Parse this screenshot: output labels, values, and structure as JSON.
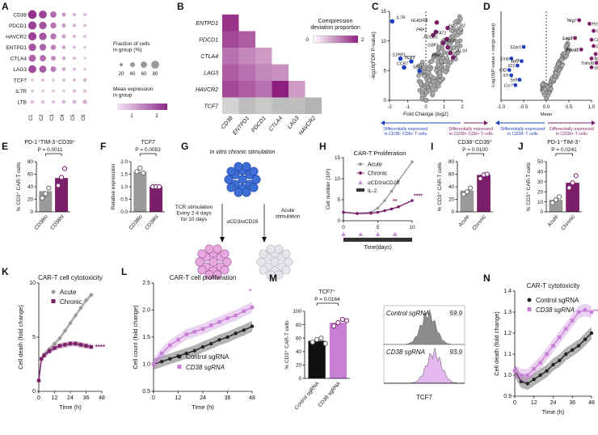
{
  "panels": {
    "A": "A",
    "B": "B",
    "C": "C",
    "D": "D",
    "E": "E",
    "F": "F",
    "G": "G",
    "H": "H",
    "I": "I",
    "J": "J",
    "K": "K",
    "L": "L",
    "M": "M",
    "N": "N"
  },
  "colors": {
    "purple": "#7b1f6a",
    "grey": "#9a9a9a",
    "light_purple": "#c77fd6",
    "blue": "#1f3fbf",
    "black": "#111111"
  },
  "panelA": {
    "genes": [
      "CD38",
      "PDCD1",
      "HAVCR2",
      "ENTPD1",
      "CTLA4",
      "LAG3",
      "TCF7",
      "IL7R",
      "LTB"
    ],
    "clusters": [
      "C1",
      "C2",
      "C3",
      "C4",
      "C5",
      "C6"
    ],
    "fraction": [
      [
        90,
        80,
        60,
        30,
        20,
        15
      ],
      [
        85,
        75,
        55,
        30,
        20,
        15
      ],
      [
        85,
        75,
        55,
        30,
        20,
        15
      ],
      [
        75,
        65,
        45,
        25,
        15,
        10
      ],
      [
        70,
        60,
        40,
        25,
        15,
        10
      ],
      [
        80,
        70,
        50,
        25,
        15,
        10
      ],
      [
        15,
        20,
        15,
        20,
        20,
        25
      ],
      [
        15,
        15,
        15,
        15,
        20,
        20
      ],
      [
        25,
        25,
        20,
        25,
        30,
        35
      ]
    ],
    "mean": [
      [
        2.2,
        2.0,
        1.5,
        0.9,
        0.7,
        0.6
      ],
      [
        2.0,
        1.8,
        1.4,
        0.9,
        0.7,
        0.6
      ],
      [
        2.0,
        1.8,
        1.4,
        0.8,
        0.6,
        0.5
      ],
      [
        1.8,
        1.6,
        1.2,
        0.8,
        0.6,
        0.5
      ],
      [
        1.6,
        1.5,
        1.1,
        0.7,
        0.6,
        0.5
      ],
      [
        1.9,
        1.7,
        1.3,
        0.8,
        0.6,
        0.5
      ],
      [
        0.4,
        0.5,
        0.4,
        0.5,
        0.5,
        0.6
      ],
      [
        0.4,
        0.4,
        0.4,
        0.4,
        0.5,
        0.5
      ],
      [
        0.5,
        0.5,
        0.5,
        0.6,
        0.6,
        0.7
      ]
    ],
    "legend_fraction_title": "Fraction of cells\nin group (%)",
    "legend_fraction_ticks": [
      "20",
      "40",
      "60",
      "80"
    ],
    "legend_mean_title": "Mean expression\nin group",
    "legend_mean_ticks": [
      "1",
      "2"
    ]
  },
  "panelB": {
    "genes": [
      "ENTPD1",
      "PDCD1",
      "CTLA4",
      "LAG3",
      "HAVCR2",
      "TCF7"
    ],
    "xgenes": [
      "CD38",
      "ENTPD1",
      "PDCD1",
      "CTLA4",
      "LAG3",
      "HAVCR2"
    ],
    "legend_title": "Coexpression\ndeviation proportion",
    "legend_ticks": [
      "0",
      "2"
    ],
    "matrix": [
      [
        0.9,
        null,
        null,
        null,
        null,
        null
      ],
      [
        0.8,
        0.7,
        null,
        null,
        null,
        null
      ],
      [
        0.6,
        0.5,
        0.4,
        null,
        null,
        null
      ],
      [
        0.7,
        0.6,
        0.5,
        0.45,
        null,
        null
      ],
      [
        0.8,
        0.7,
        0.6,
        1.0,
        0.4,
        null
      ],
      [
        0.2,
        0.3,
        0.25,
        0.3,
        0.3,
        0.35
      ]
    ]
  },
  "panelC": {
    "ylabel": "-log10(FDR P-value)",
    "xlabel": "Fold Change (log2)",
    "xticks": [
      "-2",
      "-1",
      "0",
      "1",
      "2"
    ],
    "yticks": [
      "0",
      "5",
      "10",
      "15"
    ],
    "labels_up": [
      "HLADRA",
      "HAVCR2",
      "PRF1",
      "STAT1",
      "PDCD1",
      "CCL3",
      "GBP1",
      "LGALS9",
      "BIRC5"
    ],
    "labels_down": [
      "IL7R",
      "S1PR1",
      "TCF7",
      "CCR7",
      "SELL"
    ],
    "arrow_left": "Differentially expressed\nin CD38- CD8+ T cells",
    "arrow_right": "Differentially expressed\nin CD38+ CD8+ T cells"
  },
  "panelD": {
    "ylabel": "-Log10(P-value + min(p-value))",
    "xlabel": "Mean",
    "xticks": [
      "-1.0",
      "-0.5",
      "0.0",
      "0.5",
      "1.0"
    ],
    "labels_up": [
      "Nkg7",
      "Prf1",
      "Ccl4",
      "Lag3",
      "Ccl3",
      "Gzmb",
      "Pdcd1",
      "Havcr2",
      "Tox",
      "Tnfrsf9",
      "Stat3"
    ],
    "labels_down": [
      "S1pr1",
      "Emb",
      "Tcf7",
      "Il21",
      "Klf2",
      "Il7r",
      "Sell",
      "Ccr7"
    ],
    "arrow_left": "Differentially expressed\nin CD38- T cells",
    "arrow_right": "Differentially expressed\nin CD38+ T cells"
  },
  "panelE": {
    "title": "PD-1⁺TIM-3⁺CD39⁺",
    "pvalue": "P = 0.0011",
    "ylabel": "% CD3⁺ CAR-T cells",
    "yticks": [
      "0",
      "20",
      "40",
      "60",
      "80"
    ],
    "categories": [
      "CD38lo",
      "CD38hi"
    ],
    "values": [
      33,
      54
    ]
  },
  "panelF": {
    "title": "TCF7",
    "pvalue": "P = 0.0053",
    "ylabel": "Relative expression",
    "yticks": [
      "0.0",
      "0.5",
      "1.0",
      "1.5",
      "2.0"
    ],
    "categories": [
      "CD38lo",
      "CD38hi"
    ],
    "values": [
      1.6,
      1.0
    ]
  },
  "panelG": {
    "title": "In vitro chronic stimulation",
    "left_text": "TCR stimulation\nEvery 2-4 days\nfor 10 days",
    "mid_text": "αCD3/αCD28",
    "right_text": "Acute\nstimulation"
  },
  "panelH": {
    "title": "CAR-T Proliferation",
    "ylabel": "Cell number (10⁶)",
    "xlabel": "Time(days)",
    "xticks": [
      "0",
      "5",
      "10"
    ],
    "yticks": [
      "0",
      "5",
      "10",
      "15"
    ],
    "legend": [
      "Acute",
      "Chronic",
      "αCD3/αCD28",
      "IL-2"
    ],
    "stars": [
      "****",
      "**"
    ],
    "chart_data": {
      "type": "line",
      "x": [
        0,
        2,
        4,
        5,
        6,
        7,
        8,
        10
      ],
      "series": [
        {
          "name": "Acute",
          "values": [
            2,
            1.8,
            2.0,
            3.0,
            4.8,
            7,
            9.5,
            14
          ]
        },
        {
          "name": "Chronic",
          "values": [
            2,
            1.7,
            1.8,
            2.0,
            2.4,
            2.8,
            3.3,
            4.8
          ]
        }
      ]
    }
  },
  "panelI": {
    "title": "CD38⁺CD39⁺",
    "pvalue": "P = 0.0100",
    "ylabel": "% CD3⁺ CAR-T cells",
    "yticks": [
      "0",
      "20",
      "40",
      "60",
      "80"
    ],
    "categories": [
      "Acute",
      "Chronic"
    ],
    "values": [
      34,
      59
    ]
  },
  "panelJ": {
    "title": "PD-1⁺TIM-3⁺",
    "pvalue": "P = 0.0241",
    "ylabel": "% CD3⁺ CAR-T cells",
    "yticks": [
      "0",
      "10",
      "20",
      "30",
      "40",
      "50"
    ],
    "categories": [
      "Acute",
      "Chronic"
    ],
    "values": [
      12,
      29
    ]
  },
  "panelK": {
    "title": "CAR-T cell cytotoxicity",
    "ylabel": "Cell death (fold change)",
    "xlabel": "Time (h)",
    "xticks": [
      "0",
      "12",
      "24",
      "36",
      "48"
    ],
    "yticks": [
      "0",
      "5",
      "10"
    ],
    "legend": [
      "Acute",
      "Chronic"
    ],
    "stars": "****",
    "chart_data": {
      "type": "line",
      "x": [
        0,
        2,
        4,
        8,
        12,
        16,
        20,
        24,
        28,
        32,
        36,
        40
      ],
      "series": [
        {
          "name": "Acute",
          "values": [
            1,
            3,
            3.4,
            3.9,
            4.4,
            4.9,
            5.6,
            6.3,
            7.0,
            7.7,
            8.4,
            8.9
          ]
        },
        {
          "name": "Chronic",
          "values": [
            1,
            3,
            3.3,
            3.7,
            4.0,
            4.2,
            4.3,
            4.4,
            4.4,
            4.3,
            4.2,
            4.1
          ]
        }
      ]
    }
  },
  "panelL": {
    "title": "CAR-T cell proliferation",
    "ylabel": "Cell count (fold change)",
    "xlabel": "Time (h)",
    "xticks": [
      "0",
      "12",
      "24",
      "36",
      "48"
    ],
    "yticks": [
      "0.5",
      "1.0",
      "1.5",
      "2.0",
      "2.5"
    ],
    "legend": [
      "Control sgRNA",
      "CD38 sgRNA"
    ],
    "stars": "*",
    "chart_data": {
      "type": "line",
      "x": [
        0,
        4,
        8,
        12,
        16,
        20,
        24,
        28,
        32,
        36,
        40,
        44,
        48
      ],
      "series": [
        {
          "name": "Control sgRNA",
          "values": [
            1.0,
            1.05,
            1.1,
            1.15,
            1.2,
            1.25,
            1.32,
            1.38,
            1.45,
            1.5,
            1.57,
            1.63,
            1.7
          ]
        },
        {
          "name": "CD38 sgRNA",
          "values": [
            1.0,
            1.2,
            1.35,
            1.45,
            1.55,
            1.6,
            1.65,
            1.72,
            1.78,
            1.85,
            1.9,
            1.98,
            2.05
          ]
        }
      ]
    }
  },
  "panelM": {
    "title": "TCF7⁺",
    "pvalue": "P = 0.0164",
    "ylabel": "% CD3⁺ CAR-T cells",
    "yticks": [
      "0",
      "20",
      "40",
      "60",
      "80",
      "100"
    ],
    "categories": [
      "Control sgRNA",
      "CD38 sgRNA"
    ],
    "values": [
      56,
      83
    ],
    "hist_label_top": "Control sgRNA",
    "hist_value_top": "59.9",
    "hist_label_bottom": "CD38 sgRNA",
    "hist_value_bottom": "93.9",
    "hist_xlabel": "TCF7"
  },
  "panelN": {
    "title": "CAR-T cytotoxicity",
    "ylabel": "Cell death (fold change)",
    "xlabel": "Time (h)",
    "xticks": [
      "0",
      "12",
      "24",
      "36",
      "48"
    ],
    "yticks": [
      "0.9",
      "1.0",
      "1.1",
      "1.2",
      "1.3",
      "1.4"
    ],
    "legend": [
      "Control sgRNA",
      "CD38 sgRNA"
    ],
    "stars": "**",
    "chart_data": {
      "type": "line",
      "x": [
        0,
        4,
        8,
        12,
        16,
        20,
        24,
        28,
        32,
        36,
        40,
        44,
        48
      ],
      "series": [
        {
          "name": "Control sgRNA",
          "values": [
            1.02,
            0.97,
            0.96,
            0.98,
            1.0,
            1.02,
            1.05,
            1.07,
            1.1,
            1.12,
            1.14,
            1.17,
            1.2
          ]
        },
        {
          "name": "CD38 sgRNA",
          "values": [
            1.02,
            1.0,
            1.0,
            1.03,
            1.06,
            1.1,
            1.14,
            1.18,
            1.22,
            1.26,
            1.3,
            1.31,
            1.3
          ]
        }
      ]
    }
  }
}
